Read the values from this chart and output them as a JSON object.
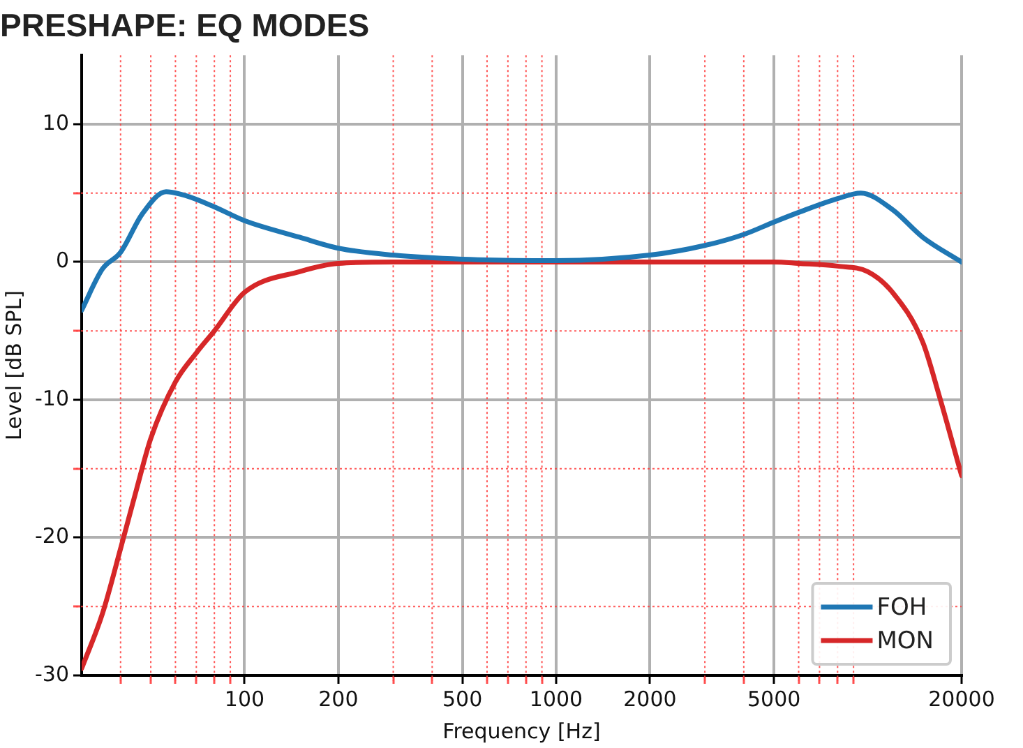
{
  "chart_data": {
    "type": "line",
    "title": "PRESHAPE: EQ MODES",
    "xlabel": "Frequency [Hz]",
    "ylabel": "Level [dB SPL]",
    "log": "x",
    "grid": true,
    "legend": "bottom right",
    "line_style": "solid",
    "marker": "none",
    "xlim": [
      30,
      20000
    ],
    "xticks": [
      {
        "value": 40,
        "label": null
      },
      {
        "value": 50,
        "label": null
      },
      {
        "value": 60,
        "label": null
      },
      {
        "value": 70,
        "label": null
      },
      {
        "value": 80,
        "label": null
      },
      {
        "value": 90,
        "label": null
      },
      100,
      200,
      {
        "value": 300,
        "label": null
      },
      {
        "value": 400,
        "label": null
      },
      500,
      {
        "value": 600,
        "label": null
      },
      {
        "value": 700,
        "label": null
      },
      {
        "value": 800,
        "label": null
      },
      {
        "value": 900,
        "label": null
      },
      1000,
      2000,
      {
        "value": 3000,
        "label": null
      },
      {
        "value": 4000,
        "label": null
      },
      5000,
      {
        "value": 6000,
        "label": null
      },
      {
        "value": 7000,
        "label": null
      },
      {
        "value": 8000,
        "label": null
      },
      {
        "value": 9000,
        "label": null
      },
      20000
    ],
    "ylim": [
      -30,
      15
    ],
    "yticks": [
      -30,
      {
        "value": -25,
        "label": null
      },
      -20,
      {
        "value": -15,
        "label": null
      },
      -10,
      {
        "value": -5,
        "label": null
      },
      0,
      {
        "value": 5,
        "label": null
      },
      10
    ],
    "series": [
      {
        "name": "FOH",
        "color": "#1f77b4",
        "x": [
          30,
          35,
          40,
          47,
          56,
          65,
          80,
          100,
          150,
          200,
          300,
          500,
          1000,
          2000,
          3000,
          4000,
          5000,
          6000,
          8000,
          9500,
          12000,
          15000,
          20000
        ],
        "values": [
          -3.5,
          -0.5,
          0.7,
          3.5,
          5.1,
          4.8,
          4.0,
          3.0,
          1.8,
          1.0,
          0.5,
          0.2,
          0.1,
          0.5,
          1.2,
          2.0,
          2.9,
          3.6,
          4.6,
          5.0,
          3.8,
          1.8,
          0
        ]
      },
      {
        "name": "MON",
        "color": "#d62728",
        "x": [
          30,
          35,
          40,
          45,
          50,
          60,
          70,
          80,
          100,
          150,
          200,
          300,
          500,
          1000,
          2000,
          5000,
          6000,
          8000,
          10000,
          12000,
          15000,
          17000,
          20000
        ],
        "values": [
          -29.5,
          -25.5,
          -20.8,
          -16.5,
          -12.8,
          -8.7,
          -6.6,
          -5.0,
          -2.2,
          -0.7,
          -0.1,
          0,
          0,
          0,
          0,
          0,
          -0.1,
          -0.3,
          -0.7,
          -2.2,
          -5.8,
          -9.8,
          -15.5
        ]
      }
    ]
  }
}
